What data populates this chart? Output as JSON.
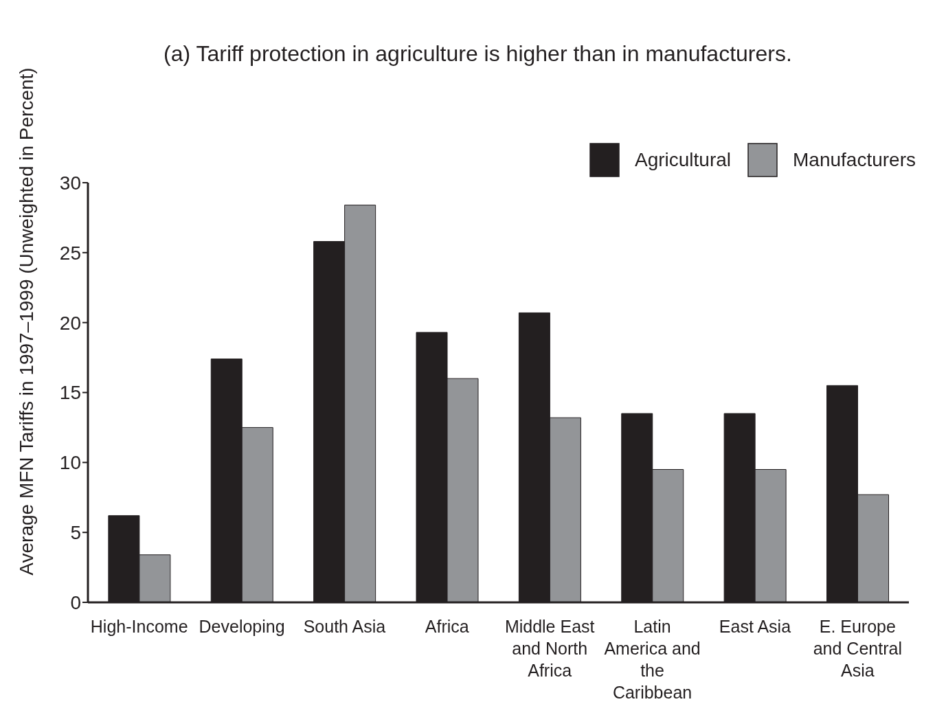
{
  "chart_data": {
    "type": "bar",
    "title": "(a) Tariff protection in agriculture is higher than in manufacturers.",
    "ylabel": "Average MFN Tariffs in 1997–1999 (Unweighted in Percent)",
    "categories": [
      "High-Income",
      "Developing",
      "South Asia",
      "Africa",
      "Middle East and North Africa",
      "Latin America and the Caribbean",
      "East Asia",
      "E. Europe and Central Asia"
    ],
    "series": [
      {
        "name": "Agricultural",
        "color": "#231f20",
        "values": [
          6.2,
          17.4,
          25.8,
          19.3,
          20.7,
          13.5,
          13.5,
          15.5
        ]
      },
      {
        "name": "Manufacturers",
        "color": "#939598",
        "values": [
          3.4,
          12.5,
          28.4,
          16.0,
          13.2,
          9.5,
          9.5,
          7.7
        ]
      }
    ],
    "ylim": [
      0,
      30
    ],
    "yticks": [
      0,
      5,
      10,
      15,
      20,
      25,
      30
    ],
    "legend": "top right",
    "grid": false
  }
}
